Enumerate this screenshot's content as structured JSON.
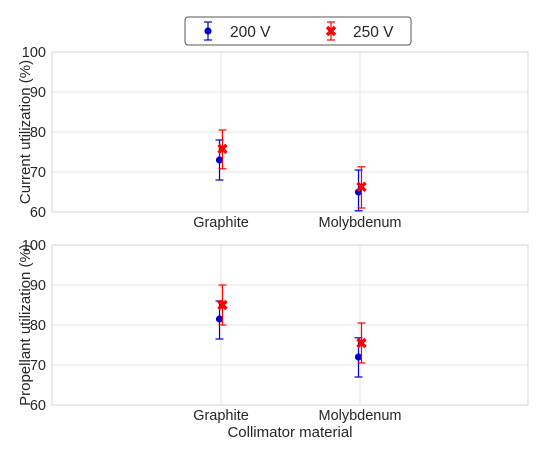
{
  "chart_data": [
    {
      "type": "scatter",
      "categories": [
        "Graphite",
        "Molybdenum"
      ],
      "ylabel": "Current utilization (%)",
      "xlabel": "",
      "ylim": [
        60,
        100
      ],
      "yticks": [
        "60",
        "70",
        "80",
        "90",
        "100"
      ],
      "grid": true,
      "series": [
        {
          "name": "200 V",
          "values": [
            73,
            65
          ],
          "err_low": [
            68,
            60.3
          ],
          "err_high": [
            78,
            70.5
          ]
        },
        {
          "name": "250 V",
          "values": [
            75.8,
            66.3
          ],
          "err_low": [
            70.8,
            61
          ],
          "err_high": [
            80.5,
            71.3
          ]
        }
      ]
    },
    {
      "type": "scatter",
      "categories": [
        "Graphite",
        "Molybdenum"
      ],
      "ylabel": "Propellant utilization (%)",
      "xlabel": "Collimator material",
      "ylim": [
        60,
        100
      ],
      "yticks": [
        "60",
        "70",
        "80",
        "90",
        "100"
      ],
      "grid": true,
      "series": [
        {
          "name": "200 V",
          "values": [
            81.5,
            72
          ],
          "err_low": [
            76.5,
            67
          ],
          "err_high": [
            86,
            76.8
          ]
        },
        {
          "name": "250 V",
          "values": [
            85,
            75.5
          ],
          "err_low": [
            80,
            70.5
          ],
          "err_high": [
            90,
            80.5
          ]
        }
      ]
    }
  ],
  "legend": {
    "placement": "top-center",
    "items": [
      {
        "label": "200 V",
        "color": "#0000cc",
        "marker": "circle"
      },
      {
        "label": "250 V",
        "color": "#ff0000",
        "marker": "x"
      }
    ]
  }
}
